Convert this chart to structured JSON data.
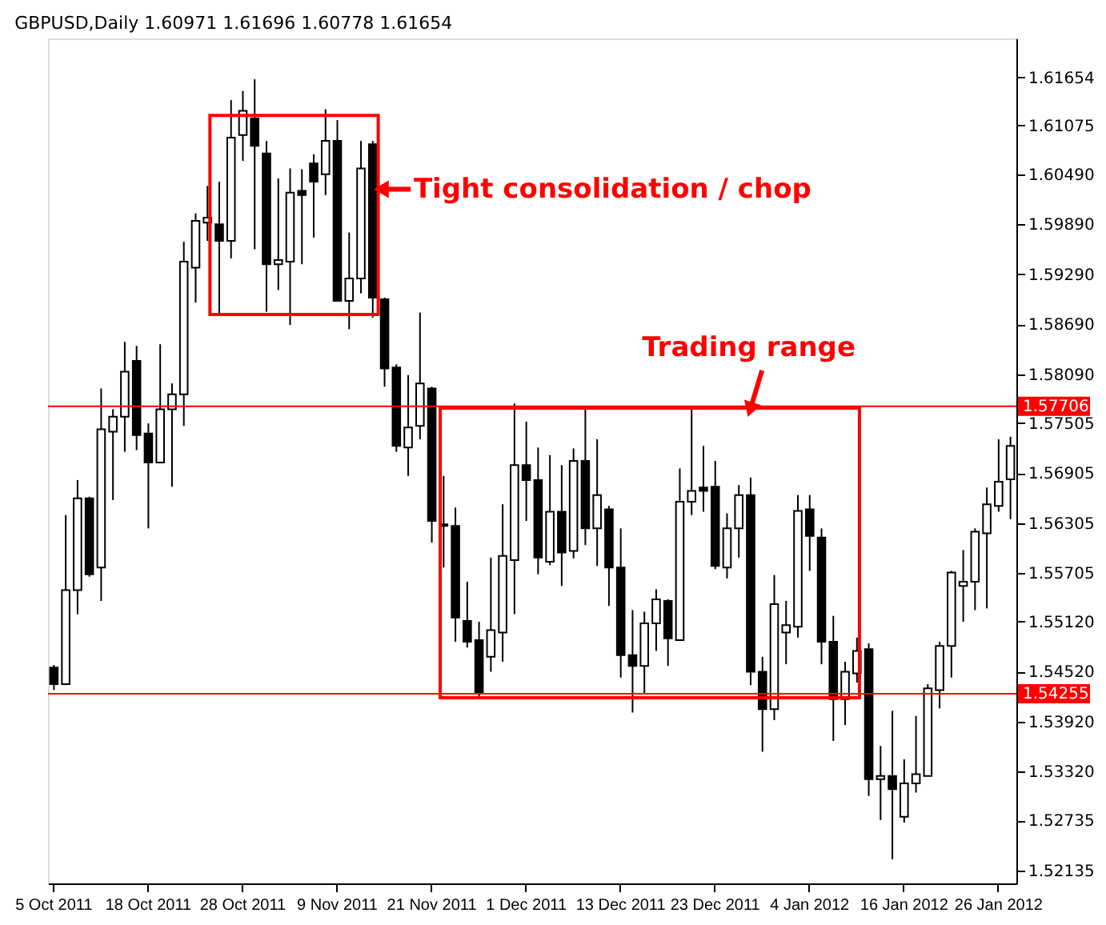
{
  "chart_data": {
    "type": "candlestick",
    "title": "GBPUSD,Daily 1.60971 1.61696 1.60778 1.61654",
    "categories": [
      "5 Oct 2011",
      null,
      null,
      null,
      null,
      null,
      null,
      null,
      "18 Oct 2011",
      null,
      null,
      null,
      null,
      null,
      null,
      null,
      "28 Oct 2011",
      null,
      null,
      null,
      null,
      null,
      null,
      null,
      "9 Nov 2011",
      null,
      null,
      null,
      null,
      null,
      null,
      null,
      "21 Nov 2011",
      null,
      null,
      null,
      null,
      null,
      null,
      null,
      "1 Dec 2011",
      null,
      null,
      null,
      null,
      null,
      null,
      null,
      "13 Dec 2011",
      null,
      null,
      null,
      null,
      null,
      null,
      null,
      "23 Dec 2011",
      null,
      null,
      null,
      null,
      null,
      null,
      null,
      "4 Jan 2012",
      null,
      null,
      null,
      null,
      null,
      null,
      null,
      "16 Jan 2012",
      null,
      null,
      null,
      null,
      null,
      null,
      null,
      "26 Jan 2012",
      null
    ],
    "ohlc": [
      [
        1.5457,
        1.546,
        1.543,
        1.5437
      ],
      [
        1.5437,
        1.564,
        1.5436,
        1.555
      ],
      [
        1.555,
        1.5682,
        1.5521,
        1.566
      ],
      [
        1.566,
        1.5662,
        1.5566,
        1.5569
      ],
      [
        1.5577,
        1.5792,
        1.5537,
        1.5743
      ],
      [
        1.574,
        1.5767,
        1.5658,
        1.5758
      ],
      [
        1.5758,
        1.5848,
        1.5716,
        1.5812
      ],
      [
        1.5825,
        1.5843,
        1.5718,
        1.5736
      ],
      [
        1.5738,
        1.575,
        1.5624,
        1.5703
      ],
      [
        1.5703,
        1.5845,
        1.5702,
        1.5767
      ],
      [
        1.5767,
        1.5798,
        1.5674,
        1.5785
      ],
      [
        1.5785,
        1.5968,
        1.5747,
        1.5944
      ],
      [
        1.5937,
        1.6002,
        1.5895,
        1.5993
      ],
      [
        1.5991,
        1.6035,
        1.5969,
        1.5997
      ],
      [
        1.5989,
        1.604,
        1.5881,
        1.5969
      ],
      [
        1.5969,
        1.6138,
        1.5948,
        1.6093
      ],
      [
        1.6096,
        1.6149,
        1.6065,
        1.6125
      ],
      [
        1.6116,
        1.6163,
        1.5959,
        1.6083
      ],
      [
        1.6074,
        1.6089,
        1.5884,
        1.5941
      ],
      [
        1.5941,
        1.6044,
        1.591,
        1.5946
      ],
      [
        1.5944,
        1.6056,
        1.5868,
        1.6027
      ],
      [
        1.6029,
        1.6055,
        1.5941,
        1.6024
      ],
      [
        1.6062,
        1.6073,
        1.5973,
        1.604
      ],
      [
        1.6049,
        1.6127,
        1.6024,
        1.6089
      ],
      [
        1.6089,
        1.6114,
        1.5897,
        1.5897
      ],
      [
        1.5897,
        1.5979,
        1.5863,
        1.5924
      ],
      [
        1.5924,
        1.6089,
        1.5906,
        1.6056
      ],
      [
        1.6085,
        1.6089,
        1.5877,
        1.5901
      ],
      [
        1.5899,
        1.5901,
        1.5794,
        1.5816
      ],
      [
        1.5817,
        1.5821,
        1.5716,
        1.5723
      ],
      [
        1.5721,
        1.5808,
        1.5687,
        1.5745
      ],
      [
        1.5747,
        1.5883,
        1.5731,
        1.5798
      ],
      [
        1.5792,
        1.5794,
        1.5607,
        1.5633
      ],
      [
        1.5629,
        1.5687,
        1.5577,
        1.5627
      ],
      [
        1.5627,
        1.5649,
        1.5488,
        1.5517
      ],
      [
        1.5513,
        1.556,
        1.5481,
        1.5488
      ],
      [
        1.549,
        1.5512,
        1.5421,
        1.5426
      ],
      [
        1.547,
        1.5589,
        1.5452,
        1.5502
      ],
      [
        1.5499,
        1.5653,
        1.5464,
        1.5591
      ],
      [
        1.5586,
        1.5774,
        1.5521,
        1.57
      ],
      [
        1.57,
        1.5752,
        1.5633,
        1.5682
      ],
      [
        1.5682,
        1.5721,
        1.5569,
        1.5589
      ],
      [
        1.5584,
        1.5712,
        1.558,
        1.5644
      ],
      [
        1.5644,
        1.57,
        1.5555,
        1.5595
      ],
      [
        1.5597,
        1.572,
        1.5588,
        1.5705
      ],
      [
        1.5705,
        1.5767,
        1.5604,
        1.5624
      ],
      [
        1.5624,
        1.5731,
        1.5579,
        1.5664
      ],
      [
        1.5647,
        1.5651,
        1.5531,
        1.5577
      ],
      [
        1.5577,
        1.5624,
        1.5445,
        1.5472
      ],
      [
        1.5472,
        1.5526,
        1.5403,
        1.5459
      ],
      [
        1.5459,
        1.5524,
        1.5426,
        1.551
      ],
      [
        1.551,
        1.5551,
        1.5477,
        1.5539
      ],
      [
        1.5537,
        1.5539,
        1.5459,
        1.5492
      ],
      [
        1.549,
        1.5696,
        1.549,
        1.5656
      ],
      [
        1.5656,
        1.577,
        1.564,
        1.5669
      ],
      [
        1.5673,
        1.5723,
        1.5644,
        1.5669
      ],
      [
        1.5674,
        1.5705,
        1.5575,
        1.5579
      ],
      [
        1.5577,
        1.5642,
        1.5564,
        1.5624
      ],
      [
        1.5624,
        1.5676,
        1.5589,
        1.5664
      ],
      [
        1.5664,
        1.5685,
        1.5436,
        1.5452
      ],
      [
        1.5452,
        1.547,
        1.5356,
        1.5407
      ],
      [
        1.5407,
        1.5568,
        1.5394,
        1.5533
      ],
      [
        1.5499,
        1.5537,
        1.5461,
        1.5508
      ],
      [
        1.5506,
        1.5664,
        1.5493,
        1.5645
      ],
      [
        1.5647,
        1.5664,
        1.5573,
        1.5615
      ],
      [
        1.5613,
        1.5624,
        1.5461,
        1.5488
      ],
      [
        1.5488,
        1.5519,
        1.5369,
        1.5419
      ],
      [
        1.5419,
        1.5464,
        1.5388,
        1.5452
      ],
      [
        1.545,
        1.5493,
        1.5439,
        1.5477
      ],
      [
        1.5479,
        1.5486,
        1.5303,
        1.5323
      ],
      [
        1.5323,
        1.5363,
        1.5274,
        1.5327
      ],
      [
        1.5327,
        1.5405,
        1.5227,
        1.5311
      ],
      [
        1.5278,
        1.5347,
        1.5271,
        1.5318
      ],
      [
        1.5318,
        1.5399,
        1.5307,
        1.5329
      ],
      [
        1.5327,
        1.5437,
        1.5327,
        1.5432
      ],
      [
        1.543,
        1.5488,
        1.5408,
        1.5483
      ],
      [
        1.5483,
        1.5573,
        1.5445,
        1.5571
      ],
      [
        1.5555,
        1.5598,
        1.5512,
        1.556
      ],
      [
        1.556,
        1.5624,
        1.5526,
        1.562
      ],
      [
        1.5618,
        1.5673,
        1.5528,
        1.5653
      ],
      [
        1.5651,
        1.5731,
        1.5644,
        1.568
      ],
      [
        1.5683,
        1.5734,
        1.5635,
        1.5723
      ]
    ],
    "ylim": [
      1.5198,
      1.6212
    ],
    "yticks": [
      {
        "value": 1.61654,
        "label": "1.61654"
      },
      1.61075,
      {
        "value": 1.6049,
        "label": "1.60490"
      },
      {
        "value": 1.5989,
        "label": "1.59890"
      },
      {
        "value": 1.5929,
        "label": "1.59290"
      },
      {
        "value": 1.5869,
        "label": "1.58690"
      },
      {
        "value": 1.5809,
        "label": "1.58090"
      },
      1.57505,
      1.56905,
      1.56305,
      1.55705,
      {
        "value": 1.5512,
        "label": "1.55120"
      },
      {
        "value": 1.5452,
        "label": "1.54520"
      },
      {
        "value": 1.5392,
        "label": "1.53920"
      },
      {
        "value": 1.5332,
        "label": "1.53320"
      },
      1.52735,
      1.52135
    ],
    "ref_lines": [
      {
        "axis": "y",
        "value": 1.57706,
        "label": "1.57706",
        "color": "#ff0000"
      },
      {
        "axis": "y",
        "value": 1.54255,
        "label": "1.54255",
        "color": "#ff0000"
      }
    ],
    "annotations": [
      "Tight consolidation / chop",
      "Trading range"
    ],
    "grid": false
  }
}
